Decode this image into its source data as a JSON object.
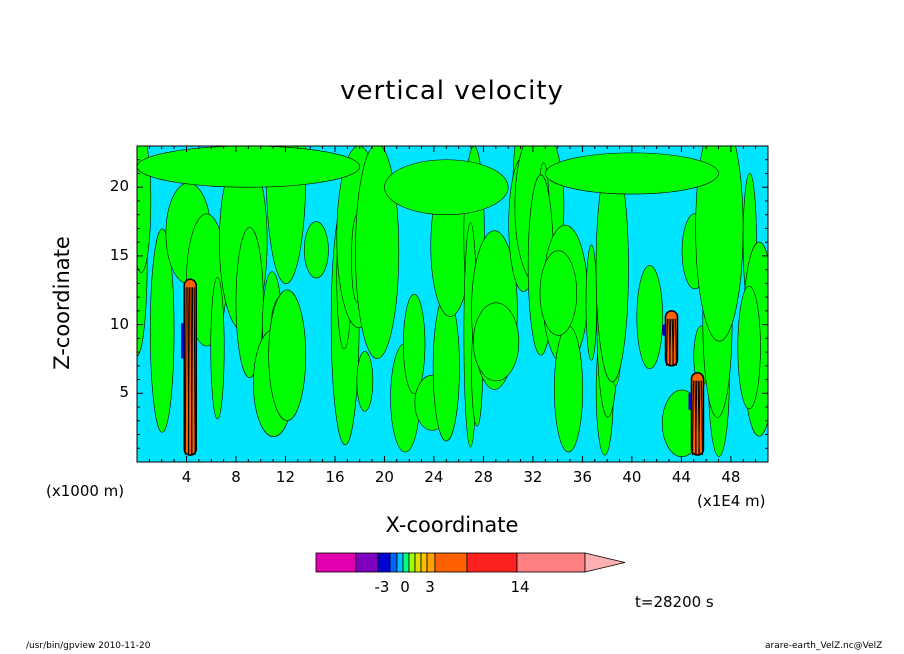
{
  "chart_data": {
    "type": "heatmap",
    "title": "vertical velocity",
    "xlabel": "X-coordinate",
    "ylabel": "Z-coordinate",
    "x_unit_note": "(x1000 m)",
    "x_scale_note": "(x1E4 m)",
    "xlim": [
      0,
      51
    ],
    "ylim": [
      0,
      23
    ],
    "x_ticks": [
      4,
      8,
      12,
      16,
      20,
      24,
      28,
      32,
      36,
      40,
      44,
      48
    ],
    "y_ticks": [
      5,
      10,
      15,
      20
    ],
    "colorbar": {
      "labels": [
        "-3",
        "0",
        "3",
        "14"
      ],
      "colors": [
        "#e000b0",
        "#8000c0",
        "#0000d0",
        "#0060ff",
        "#00c0ff",
        "#00ff80",
        "#a0ff00",
        "#e0e000",
        "#ffc000",
        "#ffa000",
        "#ff6000",
        "#ff2020",
        "#ff8080",
        "#ffb0b0"
      ]
    },
    "background_color": "#00e5ff",
    "positive_color": "#00ff00",
    "updraft_cores": [
      {
        "x": 4.3,
        "z_range": [
          0.5,
          13.3
        ]
      },
      {
        "x": 43.2,
        "z_range": [
          7,
          11
        ]
      },
      {
        "x": 45.3,
        "z_range": [
          0.5,
          6.5
        ]
      }
    ],
    "time_label": "t=28200 s"
  },
  "footer": {
    "left": "/usr/bin/gpview   2010-11-20",
    "right": "arare-earth_VelZ.nc@VelZ"
  }
}
